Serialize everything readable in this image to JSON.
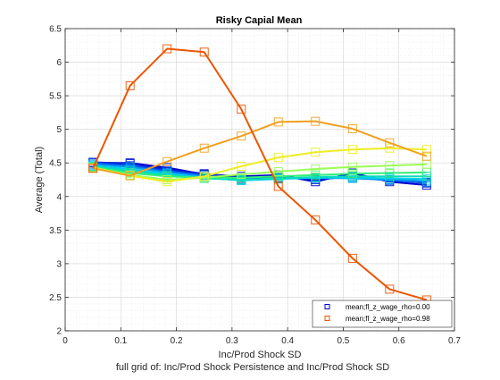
{
  "chart_data": {
    "type": "line",
    "title": "Risky Capial Mean",
    "xlabel": "Inc/Prod Shock SD",
    "ylabel": "Average (Total)",
    "footer": "full grid of: Inc/Prod Shock Persistence and Inc/Prod Shock SD",
    "xlim": [
      0,
      0.7
    ],
    "ylim": [
      2,
      6.5
    ],
    "xticks": [
      0,
      0.1,
      0.2,
      0.3,
      0.4,
      0.5,
      0.6,
      0.7
    ],
    "xtick_labels": [
      "0",
      "0.1",
      "0.2",
      "0.3",
      "0.4",
      "0.5",
      "0.6",
      "0.7"
    ],
    "yticks": [
      2,
      2.5,
      3,
      3.5,
      4,
      4.5,
      5,
      5.5,
      6,
      6.5
    ],
    "ytick_labels": [
      "2",
      "2.5",
      "3",
      "3.5",
      "4",
      "4.5",
      "5",
      "5.5",
      "6",
      "6.5"
    ],
    "grid": true,
    "marker": "square",
    "legend_position": "bottom-right",
    "x": [
      0.05,
      0.1167,
      0.1833,
      0.25,
      0.3167,
      0.3833,
      0.45,
      0.5167,
      0.5833,
      0.65
    ],
    "series": [
      {
        "name": "mean;fl_z_wage_rho=0.00",
        "color": "#0000cc",
        "legend": true,
        "values": [
          4.5,
          4.5,
          4.43,
          4.33,
          4.3,
          4.32,
          4.22,
          4.35,
          4.22,
          4.17
        ]
      },
      {
        "color": "#0022dd",
        "legend": false,
        "values": [
          4.51,
          4.49,
          4.4,
          4.34,
          4.27,
          4.3,
          4.25,
          4.3,
          4.25,
          4.2
        ]
      },
      {
        "color": "#0055ee",
        "legend": false,
        "values": [
          4.5,
          4.46,
          4.38,
          4.32,
          4.25,
          4.28,
          4.27,
          4.28,
          4.24,
          4.21
        ]
      },
      {
        "color": "#0099ee",
        "legend": false,
        "values": [
          4.48,
          4.44,
          4.36,
          4.3,
          4.24,
          4.27,
          4.28,
          4.27,
          4.25,
          4.23
        ]
      },
      {
        "color": "#00ccee",
        "legend": false,
        "values": [
          4.46,
          4.41,
          4.34,
          4.28,
          4.24,
          4.26,
          4.28,
          4.28,
          4.27,
          4.26
        ]
      },
      {
        "color": "#00ddbb",
        "legend": false,
        "values": [
          4.45,
          4.38,
          4.32,
          4.27,
          4.25,
          4.27,
          4.29,
          4.3,
          4.3,
          4.3
        ]
      },
      {
        "color": "#33ee77",
        "legend": false,
        "values": [
          4.44,
          4.35,
          4.3,
          4.28,
          4.28,
          4.3,
          4.32,
          4.34,
          4.35,
          4.36
        ]
      },
      {
        "color": "#99ff55",
        "legend": false,
        "values": [
          4.43,
          4.32,
          4.25,
          4.28,
          4.33,
          4.37,
          4.41,
          4.44,
          4.46,
          4.48
        ]
      },
      {
        "color": "#eeee22",
        "legend": false,
        "values": [
          4.43,
          4.31,
          4.22,
          4.3,
          4.45,
          4.58,
          4.66,
          4.7,
          4.72,
          4.7
        ]
      },
      {
        "color": "#f0a020",
        "legend": false,
        "values": [
          4.42,
          4.31,
          4.52,
          4.72,
          4.9,
          5.11,
          5.12,
          5.01,
          4.8,
          4.6
        ]
      },
      {
        "name": "mean;fl_z_wage_rho=0.98",
        "color": "#ee5500",
        "legend": true,
        "values": [
          4.42,
          5.65,
          6.2,
          6.15,
          5.3,
          4.15,
          3.65,
          3.08,
          2.62,
          2.46
        ]
      }
    ]
  }
}
